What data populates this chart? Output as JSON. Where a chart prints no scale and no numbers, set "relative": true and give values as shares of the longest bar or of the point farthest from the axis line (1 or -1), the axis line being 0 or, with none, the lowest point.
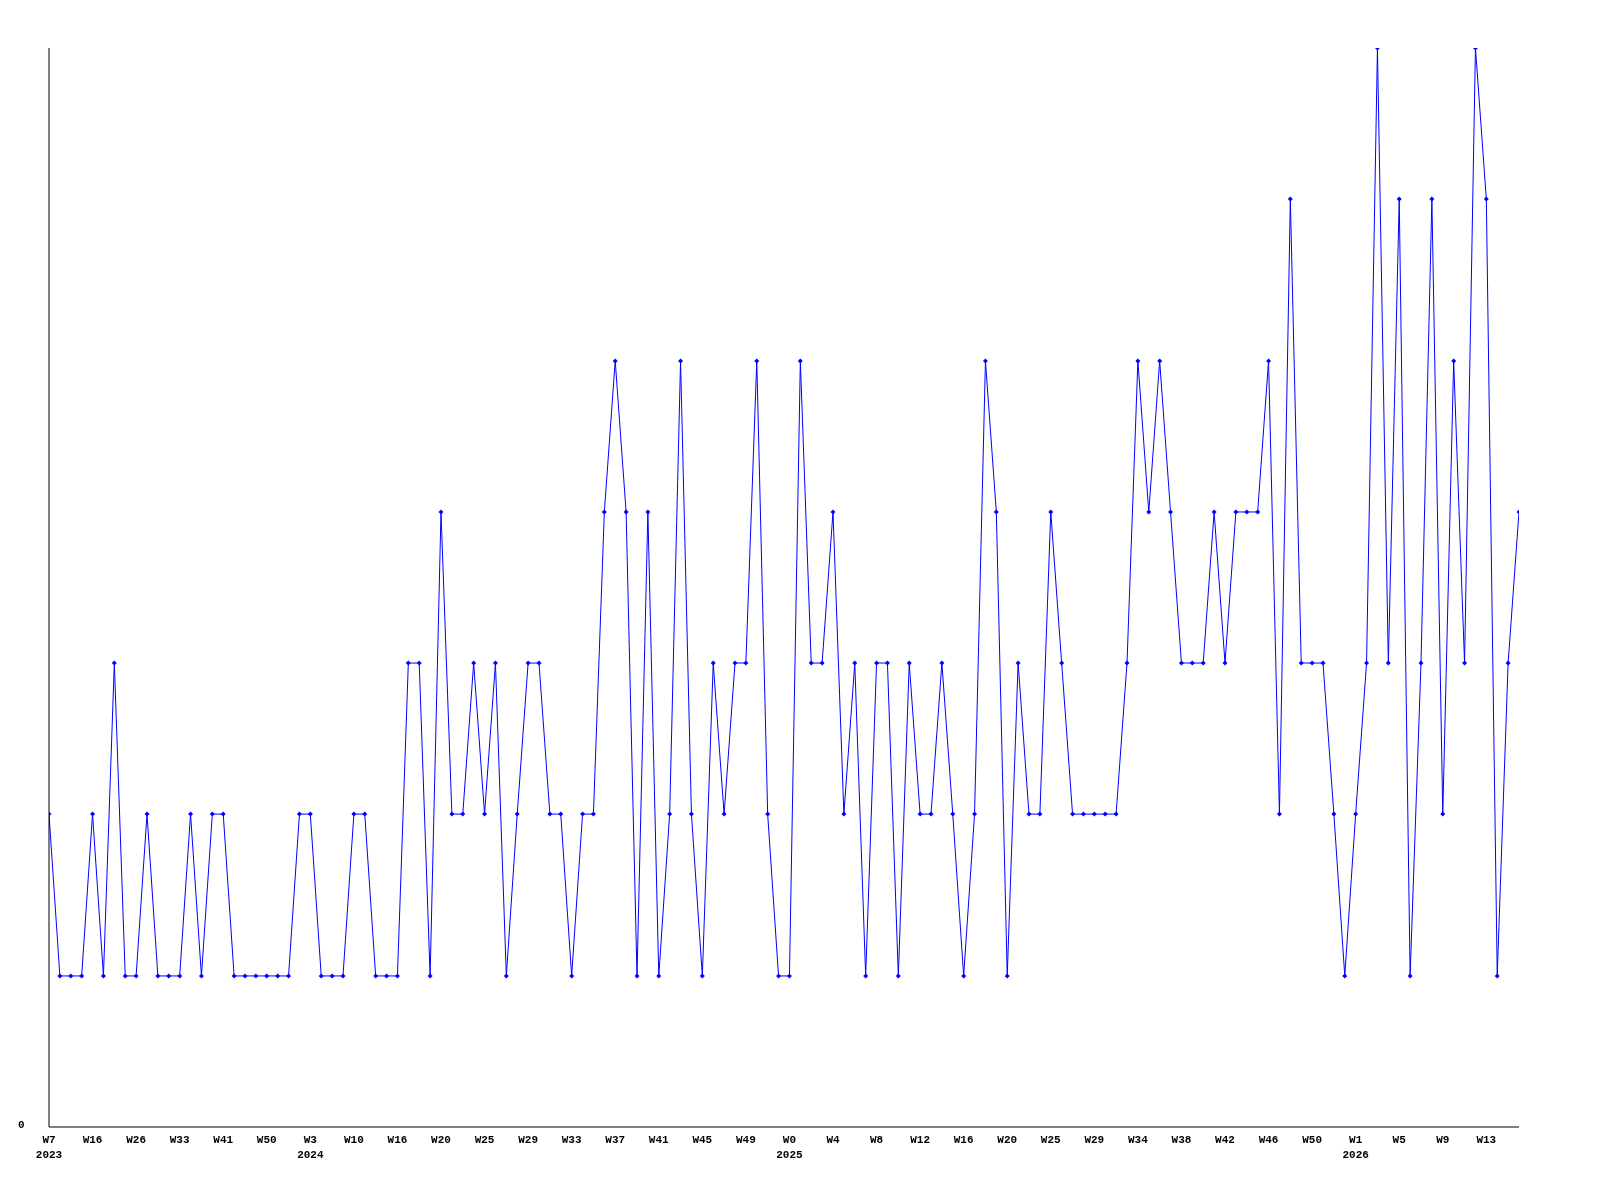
{
  "chart_data": {
    "type": "line",
    "relative": true,
    "marker": "diamond",
    "grid": false,
    "legend": false,
    "annotations": [
      "0"
    ],
    "categories": [
      "W7\n2023",
      null,
      null,
      null,
      "W16",
      null,
      null,
      null,
      "W26",
      null,
      null,
      null,
      "W33",
      null,
      null,
      null,
      "W41",
      null,
      null,
      null,
      "W50",
      null,
      null,
      null,
      "W3\n2024",
      null,
      null,
      null,
      "W10",
      null,
      null,
      null,
      "W16",
      null,
      null,
      null,
      "W20",
      null,
      null,
      null,
      "W25",
      null,
      null,
      null,
      "W29",
      null,
      null,
      null,
      "W33",
      null,
      null,
      null,
      "W37",
      null,
      null,
      null,
      "W41",
      null,
      null,
      null,
      "W45",
      null,
      null,
      null,
      "W49",
      null,
      null,
      null,
      "W0\n2025",
      null,
      null,
      null,
      "W4",
      null,
      null,
      null,
      "W8",
      null,
      null,
      null,
      "W12",
      null,
      null,
      null,
      "W16",
      null,
      null,
      null,
      "W20",
      null,
      null,
      null,
      "W25",
      null,
      null,
      null,
      "W29",
      null,
      null,
      null,
      "W34",
      null,
      null,
      null,
      "W38",
      null,
      null,
      null,
      "W42",
      null,
      null,
      null,
      "W46",
      null,
      null,
      null,
      "W50",
      null,
      null,
      null,
      "W1\n2026",
      null,
      null,
      null,
      "W5",
      null,
      null,
      null,
      "W9",
      null,
      null,
      null,
      "W13",
      null,
      null,
      null
    ],
    "series": [
      {
        "color": "#0000ff",
        "values": [
          0.29,
          0.14,
          0.14,
          0.14,
          0.29,
          0.14,
          0.43,
          0.14,
          0.14,
          0.29,
          0.14,
          0.14,
          0.14,
          0.29,
          0.14,
          0.29,
          0.29,
          0.14,
          0.14,
          0.14,
          0.14,
          0.14,
          0.14,
          0.29,
          0.29,
          0.14,
          0.14,
          0.14,
          0.29,
          0.29,
          0.14,
          0.14,
          0.14,
          0.43,
          0.43,
          0.14,
          0.57,
          0.29,
          0.29,
          0.43,
          0.29,
          0.43,
          0.14,
          0.29,
          0.43,
          0.43,
          0.29,
          0.29,
          0.14,
          0.29,
          0.29,
          0.57,
          0.71,
          0.57,
          0.14,
          0.57,
          0.14,
          0.29,
          0.71,
          0.29,
          0.14,
          0.43,
          0.29,
          0.43,
          0.43,
          0.71,
          0.29,
          0.14,
          0.14,
          0.71,
          0.43,
          0.43,
          0.57,
          0.29,
          0.43,
          0.14,
          0.43,
          0.43,
          0.14,
          0.43,
          0.29,
          0.29,
          0.43,
          0.29,
          0.14,
          0.29,
          0.71,
          0.57,
          0.14,
          0.43,
          0.29,
          0.29,
          0.57,
          0.43,
          0.29,
          0.29,
          0.29,
          0.29,
          0.29,
          0.43,
          0.71,
          0.57,
          0.71,
          0.57,
          0.43,
          0.43,
          0.43,
          0.57,
          0.43,
          0.57,
          0.57,
          0.57,
          0.71,
          0.29,
          0.86,
          0.43,
          0.43,
          0.43,
          0.29,
          0.14,
          0.29,
          0.43,
          1,
          0.43,
          0.86,
          0.14,
          0.43,
          0.86,
          0.29,
          0.71,
          0.43,
          1,
          0.86,
          0.14,
          0.43,
          0.57
        ]
      }
    ]
  }
}
